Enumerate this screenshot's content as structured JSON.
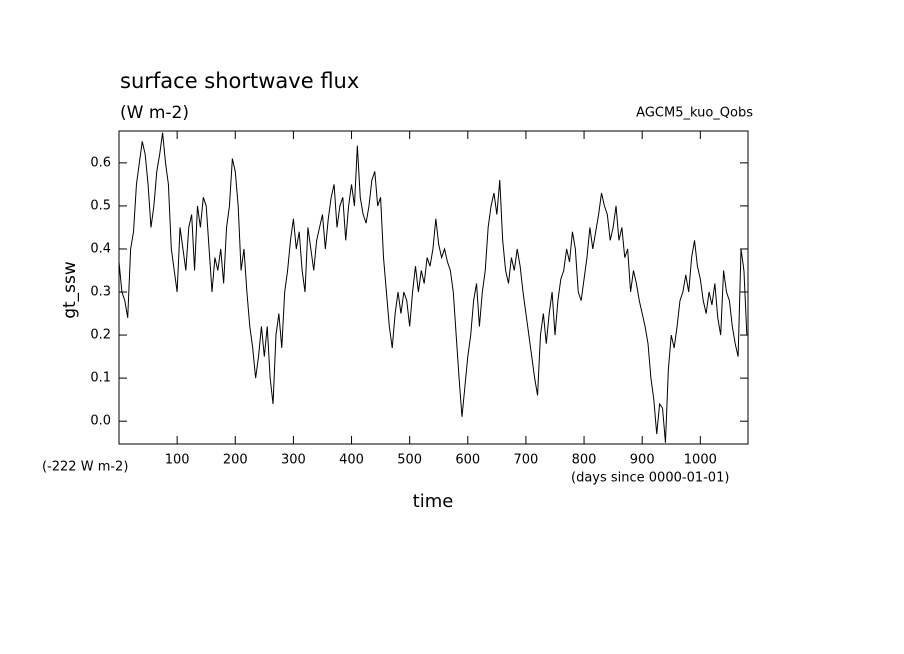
{
  "chart_data": {
    "type": "line",
    "title": "surface shortwave flux",
    "units": "(W m-2)",
    "experiment": "AGCM5_kuo_Qobs",
    "y_label": "gt_ssw",
    "x_label": "time",
    "offset_note": "(-222 W m-2)",
    "x_units": "(days since 0000-01-01)",
    "color": "#000000",
    "xlim": [
      0,
      1082
    ],
    "ylim": [
      -0.053,
      0.674
    ],
    "xticks": [
      100,
      200,
      300,
      400,
      500,
      600,
      700,
      800,
      900,
      1000
    ],
    "yticks": [
      {
        "value": 0,
        "label": "0.0"
      },
      0.1,
      0.2,
      0.3,
      0.4,
      0.5,
      0.6
    ],
    "x": [
      0,
      5,
      10,
      15,
      20,
      25,
      30,
      35,
      40,
      45,
      50,
      55,
      60,
      65,
      70,
      75,
      80,
      85,
      90,
      95,
      100,
      105,
      110,
      115,
      120,
      125,
      130,
      135,
      140,
      145,
      150,
      155,
      160,
      165,
      170,
      175,
      180,
      185,
      190,
      195,
      200,
      205,
      210,
      215,
      220,
      225,
      230,
      235,
      240,
      245,
      250,
      255,
      260,
      265,
      270,
      275,
      280,
      285,
      290,
      295,
      300,
      305,
      310,
      315,
      320,
      325,
      330,
      335,
      340,
      345,
      350,
      355,
      360,
      365,
      370,
      375,
      380,
      385,
      390,
      395,
      400,
      405,
      410,
      415,
      420,
      425,
      430,
      435,
      440,
      445,
      450,
      455,
      460,
      465,
      470,
      475,
      480,
      485,
      490,
      495,
      500,
      505,
      510,
      515,
      520,
      525,
      530,
      535,
      540,
      545,
      550,
      555,
      560,
      565,
      570,
      575,
      580,
      585,
      590,
      595,
      600,
      605,
      610,
      615,
      620,
      625,
      630,
      635,
      640,
      645,
      650,
      655,
      660,
      665,
      670,
      675,
      680,
      685,
      690,
      695,
      700,
      705,
      710,
      715,
      720,
      725,
      730,
      735,
      740,
      745,
      750,
      755,
      760,
      765,
      770,
      775,
      780,
      785,
      790,
      795,
      800,
      805,
      810,
      815,
      820,
      825,
      830,
      835,
      840,
      845,
      850,
      855,
      860,
      865,
      870,
      875,
      880,
      885,
      890,
      895,
      900,
      905,
      910,
      915,
      920,
      925,
      930,
      935,
      940,
      945,
      950,
      955,
      960,
      965,
      970,
      975,
      980,
      985,
      990,
      995,
      1000,
      1005,
      1010,
      1015,
      1020,
      1025,
      1030,
      1035,
      1040,
      1045,
      1050,
      1055,
      1060,
      1065,
      1070,
      1075,
      1080
    ],
    "values": [
      0.37,
      0.3,
      0.28,
      0.24,
      0.4,
      0.44,
      0.55,
      0.6,
      0.65,
      0.62,
      0.55,
      0.45,
      0.5,
      0.58,
      0.62,
      0.67,
      0.6,
      0.55,
      0.4,
      0.35,
      0.3,
      0.45,
      0.4,
      0.35,
      0.45,
      0.48,
      0.35,
      0.5,
      0.45,
      0.52,
      0.5,
      0.4,
      0.3,
      0.38,
      0.35,
      0.4,
      0.32,
      0.45,
      0.5,
      0.61,
      0.58,
      0.5,
      0.35,
      0.4,
      0.3,
      0.22,
      0.17,
      0.1,
      0.15,
      0.22,
      0.15,
      0.22,
      0.1,
      0.04,
      0.2,
      0.25,
      0.17,
      0.3,
      0.35,
      0.42,
      0.47,
      0.4,
      0.44,
      0.35,
      0.3,
      0.45,
      0.4,
      0.35,
      0.42,
      0.45,
      0.48,
      0.4,
      0.47,
      0.52,
      0.55,
      0.45,
      0.5,
      0.52,
      0.42,
      0.5,
      0.55,
      0.5,
      0.64,
      0.52,
      0.48,
      0.46,
      0.5,
      0.56,
      0.58,
      0.5,
      0.52,
      0.38,
      0.3,
      0.22,
      0.17,
      0.25,
      0.3,
      0.25,
      0.3,
      0.28,
      0.22,
      0.3,
      0.36,
      0.3,
      0.35,
      0.32,
      0.38,
      0.36,
      0.4,
      0.47,
      0.41,
      0.38,
      0.4,
      0.37,
      0.35,
      0.3,
      0.2,
      0.1,
      0.01,
      0.08,
      0.15,
      0.2,
      0.28,
      0.32,
      0.22,
      0.3,
      0.35,
      0.45,
      0.5,
      0.53,
      0.48,
      0.56,
      0.42,
      0.35,
      0.32,
      0.38,
      0.35,
      0.4,
      0.36,
      0.3,
      0.25,
      0.2,
      0.15,
      0.1,
      0.06,
      0.2,
      0.25,
      0.18,
      0.25,
      0.3,
      0.2,
      0.28,
      0.33,
      0.35,
      0.4,
      0.37,
      0.44,
      0.4,
      0.3,
      0.28,
      0.33,
      0.38,
      0.45,
      0.4,
      0.44,
      0.48,
      0.53,
      0.5,
      0.48,
      0.42,
      0.45,
      0.5,
      0.42,
      0.45,
      0.38,
      0.4,
      0.3,
      0.35,
      0.32,
      0.28,
      0.25,
      0.22,
      0.18,
      0.1,
      0.05,
      -0.03,
      0.04,
      0.03,
      -0.05,
      0.12,
      0.2,
      0.17,
      0.22,
      0.28,
      0.3,
      0.34,
      0.3,
      0.38,
      0.42,
      0.36,
      0.33,
      0.28,
      0.25,
      0.3,
      0.27,
      0.32,
      0.24,
      0.2,
      0.35,
      0.3,
      0.28,
      0.22,
      0.18,
      0.15,
      0.4,
      0.35,
      0.2
    ]
  }
}
